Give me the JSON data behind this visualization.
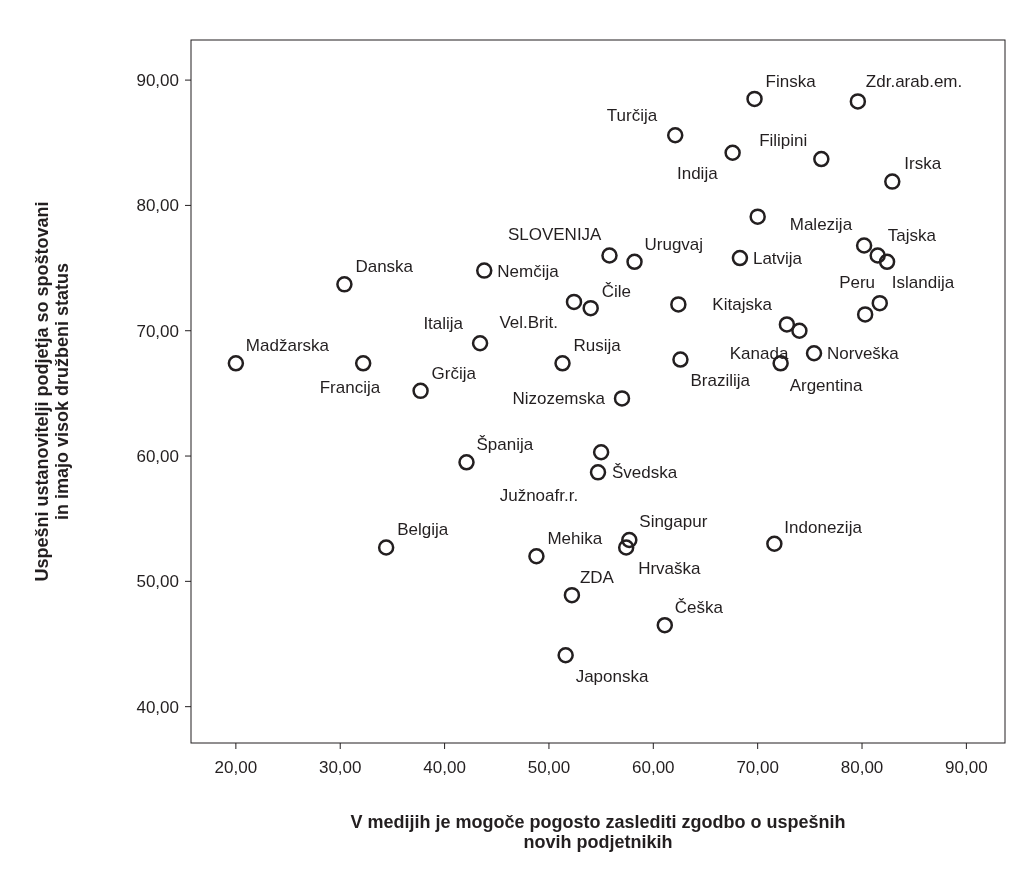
{
  "chart_data": {
    "type": "scatter",
    "xlabel": "V medijih je mogoče pogosto zaslediti zgodbo o uspešnih\nnovih podjetnikih",
    "ylabel": "Uspešni ustanovitelji podjetja so spoštovani\nin imajo visok družbeni status",
    "xlim": [
      15.7,
      93.7
    ],
    "ylim": [
      37.1,
      93.2
    ],
    "xticks": [
      {
        "value": 20,
        "label": "20,00"
      },
      {
        "value": 30,
        "label": "30,00"
      },
      {
        "value": 40,
        "label": "40,00"
      },
      {
        "value": 50,
        "label": "50,00"
      },
      {
        "value": 60,
        "label": "60,00"
      },
      {
        "value": 70,
        "label": "70,00"
      },
      {
        "value": 80,
        "label": "80,00"
      },
      {
        "value": 90,
        "label": "90,00"
      }
    ],
    "yticks": [
      {
        "value": 40,
        "label": "40,00"
      },
      {
        "value": 50,
        "label": "50,00"
      },
      {
        "value": 60,
        "label": "60,00"
      },
      {
        "value": 70,
        "label": "70,00"
      },
      {
        "value": 80,
        "label": "80,00"
      },
      {
        "value": 90,
        "label": "90,00"
      }
    ],
    "grid": false,
    "marker": "circle",
    "series": [
      {
        "color": "#231f20",
        "x": [
          20.0,
          30.4,
          32.2,
          34.4,
          37.7,
          42.1,
          43.4,
          43.8,
          48.8,
          51.3,
          51.6,
          52.2,
          52.4,
          54.0,
          54.7,
          55.0,
          55.8,
          57.0,
          57.4,
          57.7,
          58.2,
          61.1,
          62.1,
          62.4,
          62.6,
          67.6,
          68.3,
          69.7,
          70.0,
          71.6,
          72.2,
          72.8,
          74.0,
          75.4,
          76.1,
          79.6,
          80.2,
          80.3,
          81.5,
          81.7,
          82.4,
          82.9
        ],
        "values": [
          67.4,
          73.7,
          67.4,
          52.7,
          65.2,
          59.5,
          69.0,
          74.8,
          52.0,
          67.4,
          44.1,
          48.9,
          72.3,
          71.8,
          58.7,
          60.3,
          76.0,
          64.6,
          52.7,
          53.3,
          75.5,
          46.5,
          85.6,
          72.1,
          67.7,
          84.2,
          75.8,
          88.5,
          79.1,
          53.0,
          67.4,
          70.5,
          70.0,
          68.2,
          83.7,
          88.3,
          76.8,
          71.3,
          76.0,
          72.2,
          75.5,
          81.9
        ]
      }
    ],
    "annotations": [
      {
        "text": "Madžarska",
        "x": 20.0,
        "y": 67.4
      },
      {
        "text": "Danska",
        "x": 30.4,
        "y": 73.7
      },
      {
        "text": "Francija",
        "x": 32.2,
        "y": 67.4
      },
      {
        "text": "Belgija",
        "x": 34.4,
        "y": 52.7
      },
      {
        "text": "Grčija",
        "x": 37.7,
        "y": 65.2
      },
      {
        "text": "Španija",
        "x": 42.1,
        "y": 59.5
      },
      {
        "text": "Italija",
        "x": 43.4,
        "y": 69.0
      },
      {
        "text": "Nemčija",
        "x": 43.8,
        "y": 74.8
      },
      {
        "text": "Mehika",
        "x": 48.8,
        "y": 52.0
      },
      {
        "text": "Rusija",
        "x": 51.3,
        "y": 67.4
      },
      {
        "text": "Japonska",
        "x": 51.6,
        "y": 44.1
      },
      {
        "text": "ZDA",
        "x": 52.2,
        "y": 48.9
      },
      {
        "text": "Vel.Brit.",
        "x": 52.4,
        "y": 72.3
      },
      {
        "text": "Čile",
        "x": 54.0,
        "y": 71.8
      },
      {
        "text": "Švedska",
        "x": 54.7,
        "y": 58.7
      },
      {
        "text": "Južnoafr.r.",
        "x": 55.0,
        "y": 60.3
      },
      {
        "text": "SLOVENIJA",
        "x": 55.8,
        "y": 76.0
      },
      {
        "text": "Nizozemska",
        "x": 57.0,
        "y": 64.6
      },
      {
        "text": "Hrvaška",
        "x": 57.4,
        "y": 52.7
      },
      {
        "text": "Singapur",
        "x": 57.7,
        "y": 53.3
      },
      {
        "text": "Urugvaj",
        "x": 58.2,
        "y": 75.5
      },
      {
        "text": "Češka",
        "x": 61.1,
        "y": 46.5
      },
      {
        "text": "Turčija",
        "x": 62.1,
        "y": 85.6
      },
      {
        "text": "Brazilija",
        "x": 62.6,
        "y": 67.7
      },
      {
        "text": "Indija",
        "x": 67.6,
        "y": 84.2
      },
      {
        "text": "Latvija",
        "x": 68.3,
        "y": 75.8
      },
      {
        "text": "Finska",
        "x": 69.7,
        "y": 88.5
      },
      {
        "text": "Indonezija",
        "x": 71.6,
        "y": 53.0
      },
      {
        "text": "Argentina",
        "x": 72.2,
        "y": 67.4
      },
      {
        "text": "Kitajska",
        "x": 72.8,
        "y": 70.5
      },
      {
        "text": "Kanada",
        "x": 74.0,
        "y": 70.0
      },
      {
        "text": "Norveška",
        "x": 75.4,
        "y": 68.2
      },
      {
        "text": "Filipini",
        "x": 76.1,
        "y": 83.7
      },
      {
        "text": "Zdr.arab.em.",
        "x": 79.6,
        "y": 88.3
      },
      {
        "text": "Malezija",
        "x": 80.2,
        "y": 76.8
      },
      {
        "text": "Tajska",
        "x": 81.5,
        "y": 76.0
      },
      {
        "text": "Islandija",
        "x": 81.7,
        "y": 72.2
      },
      {
        "text": "Peru",
        "x": 82.4,
        "y": 75.5
      },
      {
        "text": "Irska",
        "x": 82.9,
        "y": 81.9
      }
    ]
  }
}
